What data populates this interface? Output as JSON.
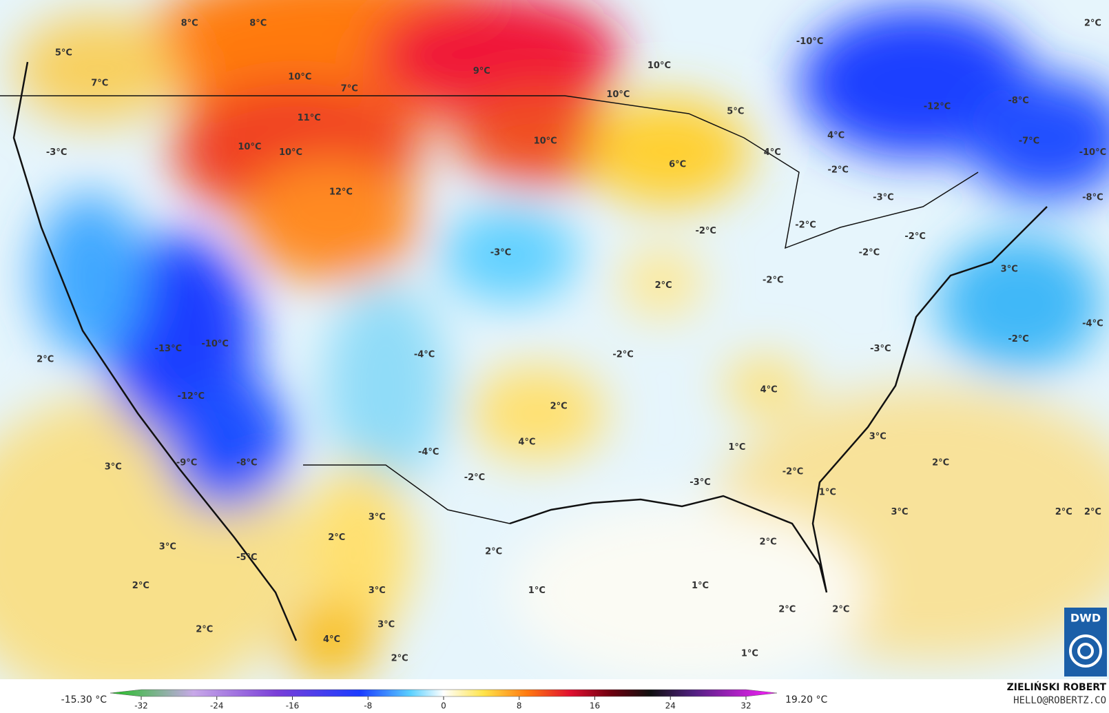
{
  "map": {
    "labels": [
      "8°C",
      "8°C",
      "5°C",
      "7°C",
      "10°C",
      "7°C",
      "9°C",
      "10°C",
      "10°C",
      "-10°C",
      "2°C",
      "-12°C",
      "-8°C",
      "5°C",
      "11°C",
      "10°C",
      "10°C",
      "10°C",
      "4°C",
      "-7°C",
      "-10°C",
      "-3°C",
      "4°C",
      "6°C",
      "-2°C",
      "12°C",
      "-3°C",
      "-8°C",
      "-2°C",
      "-2°C",
      "-2°C",
      "-3°C",
      "-2°C",
      "3°C",
      "2°C",
      "-2°C",
      "-4°C",
      "-13°C",
      "-10°C",
      "-4°C",
      "-2°C",
      "-3°C",
      "-2°C",
      "2°C",
      "4°C",
      "-12°C",
      "2°C",
      "3°C",
      "4°C",
      "-4°C",
      "1°C",
      "2°C",
      "-9°C",
      "-8°C",
      "3°C",
      "-2°C",
      "-2°C",
      "-3°C",
      "1°C",
      "3°C",
      "3°C",
      "2°C",
      "2°C",
      "2°C",
      "3°C",
      "2°C",
      "2°C",
      "-5°C",
      "2°C",
      "1°C",
      "1°C",
      "3°C",
      "2°C",
      "2°C",
      "2°C",
      "3°C",
      "4°C",
      "1°C",
      "2°C"
    ],
    "logo": "DWD"
  },
  "colorbar": {
    "ticks": [
      -32,
      -24,
      -16,
      -8,
      0,
      8,
      16,
      24,
      32
    ],
    "range": [
      -32,
      32
    ],
    "min_label": "-15.30 °C",
    "max_label": "19.20 °C"
  },
  "credit": {
    "author": "ZIELIŃSKI ROBERT",
    "contact": "HELLO@ROBERTZ.CO"
  }
}
